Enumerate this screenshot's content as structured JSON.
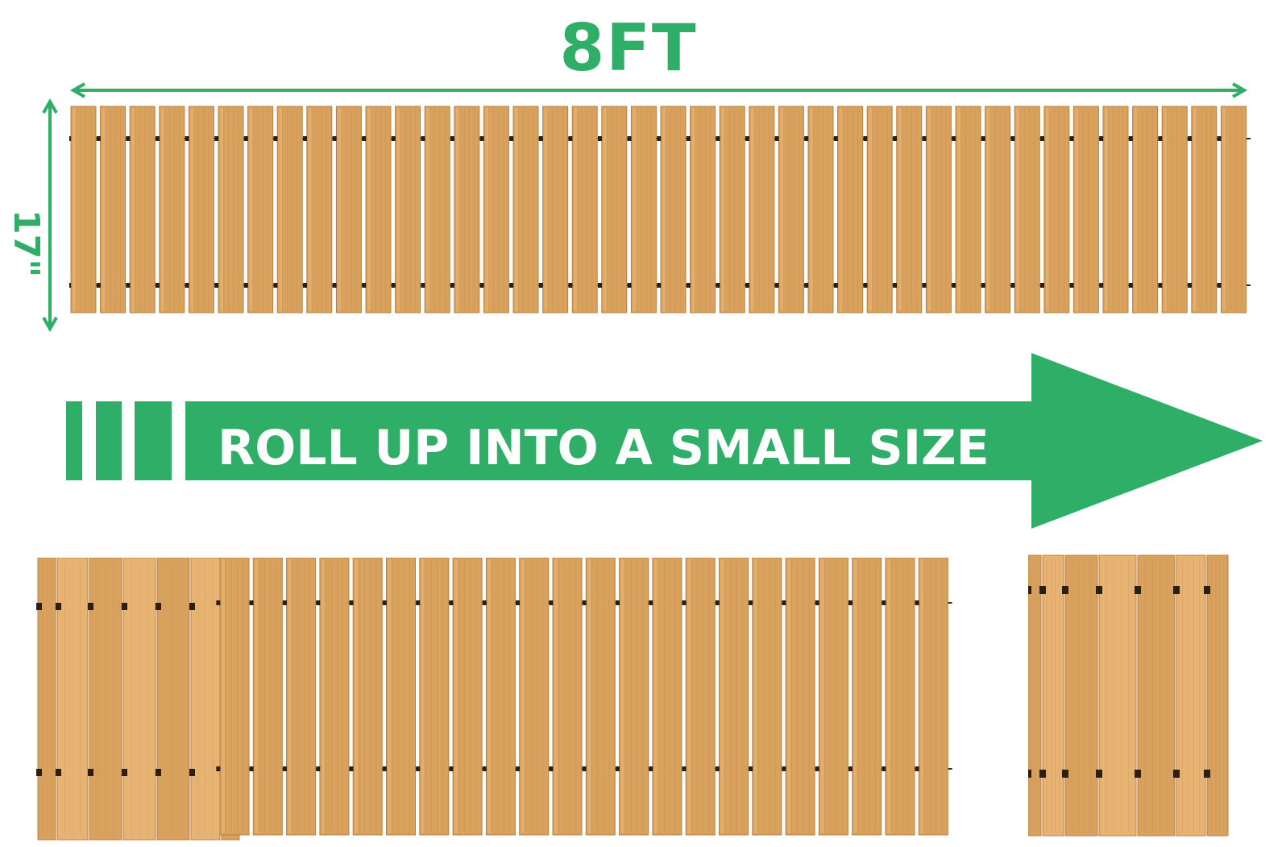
{
  "dimensions": {
    "length_label": "8FT",
    "width_label": "17\""
  },
  "banner": {
    "text": "ROLL UP INTO A SMALL SIZE"
  },
  "colors": {
    "accent_green": "#2fae67",
    "wood_base": "#d9a15e",
    "wood_light": "#e6b373",
    "wood_dark": "#b9803f",
    "background": "#ffffff"
  },
  "icons": {
    "width_arrow": "double-headed-horizontal-arrow",
    "height_arrow": "double-headed-vertical-arrow",
    "banner_arrow": "right-arrow"
  }
}
